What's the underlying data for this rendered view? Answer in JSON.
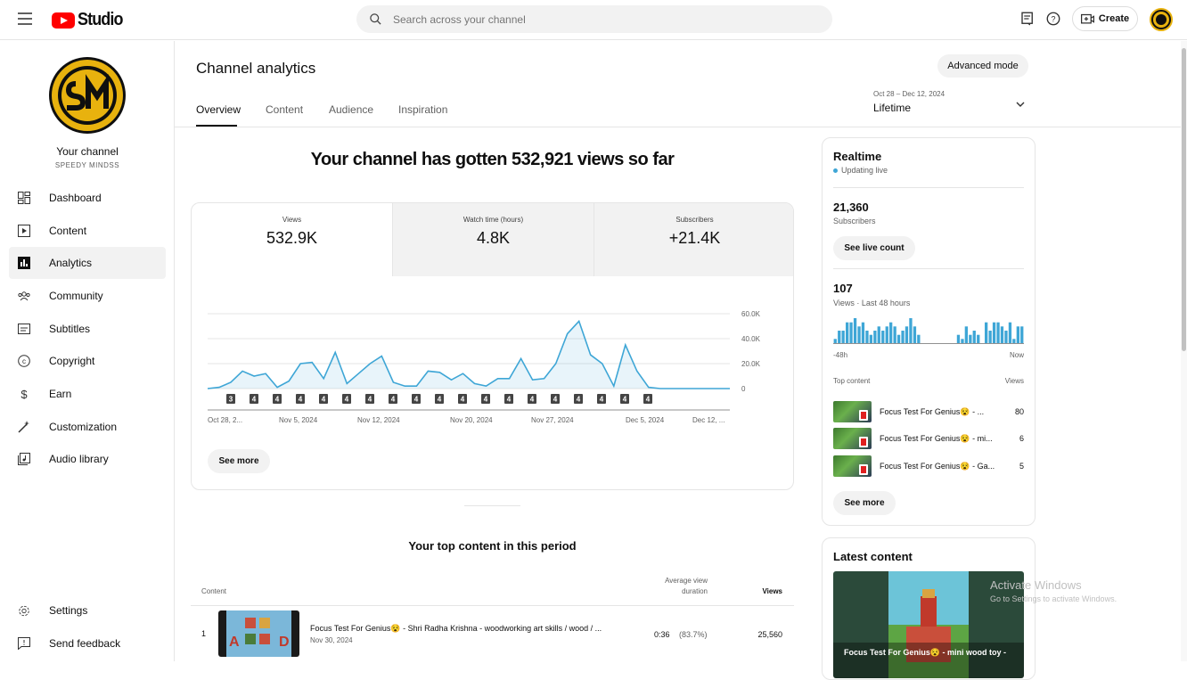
{
  "topbar": {
    "brand": "Studio",
    "search_placeholder": "Search across your channel",
    "create_label": "Create"
  },
  "sidebar": {
    "channel_title": "Your channel",
    "channel_name": "SPEEDY MINDSS",
    "items": [
      {
        "label": "Dashboard",
        "icon": "dashboard-icon"
      },
      {
        "label": "Content",
        "icon": "content-icon"
      },
      {
        "label": "Analytics",
        "icon": "analytics-icon"
      },
      {
        "label": "Community",
        "icon": "community-icon"
      },
      {
        "label": "Subtitles",
        "icon": "subtitles-icon"
      },
      {
        "label": "Copyright",
        "icon": "copyright-icon"
      },
      {
        "label": "Earn",
        "icon": "earn-icon"
      },
      {
        "label": "Customization",
        "icon": "customization-icon"
      },
      {
        "label": "Audio library",
        "icon": "audio-library-icon"
      }
    ],
    "settings": "Settings",
    "feedback": "Send feedback"
  },
  "header": {
    "title": "Channel analytics",
    "advanced_mode": "Advanced mode",
    "tabs": [
      "Overview",
      "Content",
      "Audience",
      "Inspiration"
    ],
    "date_range": "Oct 28 – Dec 12, 2024",
    "date_value": "Lifetime"
  },
  "overview": {
    "headline": "Your channel has gotten 532,921 views so far",
    "metrics": [
      {
        "label": "Views",
        "value": "532.9K"
      },
      {
        "label": "Watch time (hours)",
        "value": "4.8K"
      },
      {
        "label": "Subscribers",
        "value": "+21.4K"
      }
    ],
    "see_more": "See more"
  },
  "chart_data": {
    "type": "area",
    "series": [
      {
        "values": [
          0,
          1,
          5,
          14,
          10,
          12,
          1,
          6,
          20,
          21,
          8,
          29,
          4,
          12,
          20,
          26,
          5,
          2,
          2,
          14,
          13,
          7,
          12,
          4,
          2,
          8,
          8,
          24,
          7,
          8,
          20,
          44,
          54,
          27,
          20,
          2,
          35,
          14,
          1,
          0,
          0,
          0,
          0,
          0,
          0,
          0
        ]
      }
    ],
    "x_tick_labels": [
      "Oct 28, 2...",
      "Nov 5, 2024",
      "Nov 12, 2024",
      "Nov 20, 2024",
      "Nov 27, 2024",
      "Dec 5, 2024",
      "Dec 12, ..."
    ],
    "y_tick_labels": [
      "60.0K",
      "40.0K",
      "20.0K",
      "0"
    ],
    "ylim": [
      0,
      60
    ],
    "markers": [
      "3",
      "4",
      "4",
      "4",
      "4",
      "4",
      "4",
      "4",
      "4",
      "4",
      "4",
      "4",
      "4",
      "4",
      "4",
      "4",
      "4",
      "4",
      "4"
    ],
    "grid": true,
    "color": "#3ea6d6"
  },
  "top_content": {
    "title": "Your top content in this period",
    "col_content": "Content",
    "col_avd": "Average view duration",
    "col_views": "Views",
    "rows": [
      {
        "rank": "1",
        "title": "Focus Test For Genius😵 - Shri Radha Krishna - woodworking art skills / wood / ...",
        "date": "Nov 30, 2024",
        "avd": "0:36",
        "avd_pct": "(83.7%)",
        "views": "25,560"
      }
    ]
  },
  "realtime": {
    "title": "Realtime",
    "status": "Updating live",
    "subscribers_value": "21,360",
    "subscribers_label": "Subscribers",
    "see_live": "See live count",
    "views_value": "107",
    "views_label": "Views · Last 48 hours",
    "bars": [
      1,
      3,
      3,
      5,
      5,
      6,
      4,
      5,
      3,
      2,
      3,
      4,
      3,
      4,
      5,
      4,
      2,
      3,
      4,
      6,
      4,
      2,
      0,
      0,
      0,
      0,
      0,
      0,
      0,
      0,
      0,
      2,
      1,
      4,
      2,
      3,
      2,
      0,
      5,
      3,
      5,
      5,
      4,
      3,
      5,
      1,
      4,
      4
    ],
    "axis_left": "-48h",
    "axis_right": "Now",
    "top_content_label": "Top content",
    "top_views_label": "Views",
    "items": [
      {
        "title": "Focus Test For Genius😵 - ...",
        "views": "80"
      },
      {
        "title": "Focus Test For Genius😵 - mi...",
        "views": "6"
      },
      {
        "title": "Focus Test For Genius😵 - Ga...",
        "views": "5"
      }
    ],
    "see_more": "See more"
  },
  "latest": {
    "title": "Latest content",
    "video_title": "Focus Test For Genius😵 - mini wood toy -"
  },
  "watermark": {
    "line1": "Activate Windows",
    "line2": "Go to Settings to activate Windows."
  }
}
